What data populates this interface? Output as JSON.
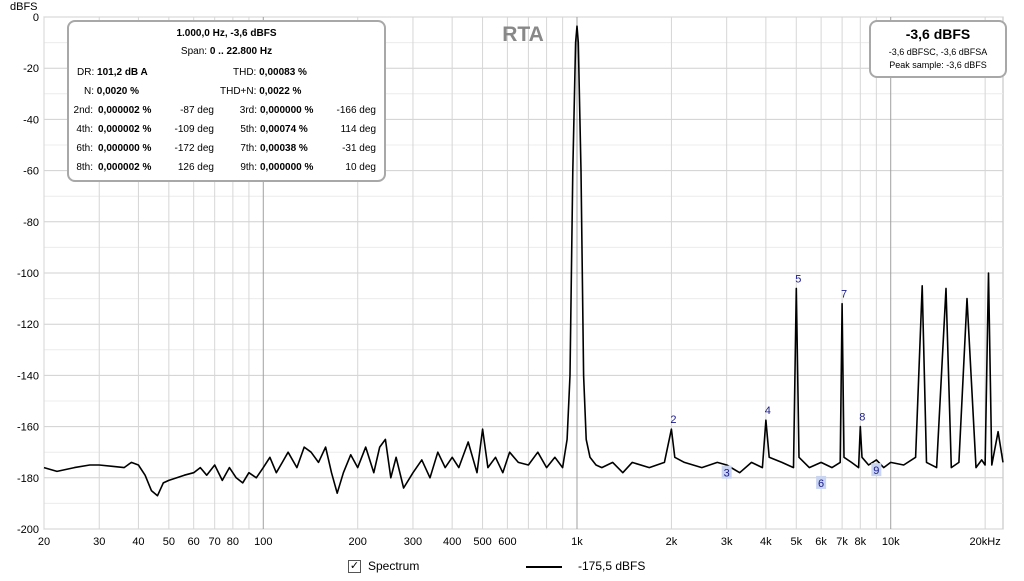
{
  "chart_data": {
    "type": "line",
    "title": "RTA",
    "ylabel": "dBFS",
    "xlabel": "",
    "xscale": "log",
    "xlim": [
      20,
      22800
    ],
    "ylim": [
      -200,
      0
    ],
    "yticks": [
      0,
      -20,
      -40,
      -60,
      -80,
      -100,
      -120,
      -140,
      -160,
      -180,
      -200
    ],
    "xticks": [
      {
        "v": 20,
        "l": "20"
      },
      {
        "v": 30,
        "l": "30"
      },
      {
        "v": 40,
        "l": "40"
      },
      {
        "v": 50,
        "l": "50"
      },
      {
        "v": 60,
        "l": "60"
      },
      {
        "v": 70,
        "l": "70"
      },
      {
        "v": 80,
        "l": "80"
      },
      {
        "v": 100,
        "l": "100"
      },
      {
        "v": 200,
        "l": "200"
      },
      {
        "v": 300,
        "l": "300"
      },
      {
        "v": 400,
        "l": "400"
      },
      {
        "v": 500,
        "l": "500"
      },
      {
        "v": 600,
        "l": "600"
      },
      {
        "v": 1000,
        "l": "1k"
      },
      {
        "v": 2000,
        "l": "2k"
      },
      {
        "v": 3000,
        "l": "3k"
      },
      {
        "v": 4000,
        "l": "4k"
      },
      {
        "v": 5000,
        "l": "5k"
      },
      {
        "v": 6000,
        "l": "6k"
      },
      {
        "v": 7000,
        "l": "7k"
      },
      {
        "v": 8000,
        "l": "8k"
      },
      {
        "v": 10000,
        "l": "10k"
      },
      {
        "v": 20000,
        "l": "20kHz"
      }
    ],
    "grid": true,
    "series": [
      {
        "name": "Spectrum",
        "x": [
          20,
          22,
          25,
          28,
          30,
          33,
          36,
          38,
          40,
          42,
          44,
          46,
          48,
          50,
          53,
          56,
          60,
          63,
          66,
          70,
          74,
          78,
          82,
          86,
          90,
          95,
          100,
          105,
          110,
          115,
          120,
          128,
          135,
          142,
          150,
          158,
          165,
          172,
          180,
          190,
          200,
          212,
          225,
          235,
          245,
          255,
          265,
          280,
          300,
          320,
          340,
          360,
          380,
          400,
          420,
          450,
          480,
          500,
          520,
          550,
          580,
          610,
          650,
          700,
          750,
          800,
          850,
          900,
          930,
          950,
          970,
          990,
          1000,
          1010,
          1030,
          1050,
          1070,
          1100,
          1150,
          1200,
          1300,
          1400,
          1500,
          1700,
          1900,
          2000,
          2050,
          2200,
          2500,
          2800,
          3000,
          3300,
          3600,
          3900,
          4000,
          4100,
          4500,
          4900,
          5000,
          5100,
          5500,
          6000,
          6500,
          6900,
          7000,
          7100,
          7500,
          7900,
          8000,
          8100,
          8500,
          9000,
          9500,
          10000,
          11000,
          12000,
          12600,
          13000,
          14000,
          15000,
          15600,
          16500,
          17500,
          18700,
          19500,
          20000,
          20500,
          21000,
          22000,
          22800
        ],
        "values": [
          -176,
          -177.5,
          -176,
          -175,
          -175,
          -175.5,
          -176,
          -174,
          -175,
          -179,
          -185,
          -187,
          -182,
          -181,
          -180,
          -179,
          -178,
          -176,
          -179,
          -175,
          -181,
          -176,
          -180,
          -182,
          -178,
          -180,
          -176,
          -172,
          -178,
          -174,
          -170,
          -176,
          -168,
          -170,
          -174,
          -168,
          -178,
          -186,
          -178,
          -171,
          -176,
          -168,
          -178,
          -168,
          -165,
          -180,
          -172,
          -184,
          -178,
          -173,
          -180,
          -170,
          -176,
          -172,
          -176,
          -166,
          -178,
          -161,
          -176,
          -172,
          -178,
          -170,
          -174,
          -175,
          -170,
          -176,
          -172,
          -176,
          -165,
          -140,
          -60,
          -10,
          -3.6,
          -10,
          -60,
          -140,
          -165,
          -172,
          -175,
          -176,
          -174,
          -178,
          -174,
          -176,
          -174,
          -161,
          -172,
          -174,
          -176,
          -174,
          -175,
          -178,
          -174,
          -176,
          -157.5,
          -172,
          -174,
          -176,
          -106,
          -172,
          -176,
          -174,
          -176,
          -174,
          -112,
          -172,
          -174,
          -176,
          -160,
          -172,
          -175,
          -173,
          -176,
          -174,
          -175,
          -172,
          -105,
          -174,
          -176,
          -106,
          -176,
          -174,
          -110,
          -176,
          -173,
          -175,
          -100,
          -175,
          -162,
          -174
        ]
      }
    ],
    "annotations": [
      {
        "label": "2",
        "x": 2000,
        "y": -161,
        "boxed": false
      },
      {
        "label": "3",
        "x": 3000,
        "y": -178,
        "boxed": true
      },
      {
        "label": "4",
        "x": 4000,
        "y": -157.5,
        "boxed": false
      },
      {
        "label": "5",
        "x": 5000,
        "y": -106,
        "boxed": false
      },
      {
        "label": "6",
        "x": 6000,
        "y": -182,
        "boxed": true
      },
      {
        "label": "7",
        "x": 7000,
        "y": -112,
        "boxed": false
      },
      {
        "label": "8",
        "x": 8000,
        "y": -160,
        "boxed": false
      },
      {
        "label": "9",
        "x": 9000,
        "y": -177,
        "boxed": true
      }
    ]
  },
  "stats": {
    "freq_level": "1.000,0 Hz, -3,6 dBFS",
    "span_label": "Span:",
    "span_value": "0 .. 22.800 Hz",
    "dr_label": "DR:",
    "dr_value": "101,2 dB A",
    "thd_label": "THD:",
    "thd_value": "0,00083 %",
    "n_label": "N:",
    "n_value": "0,0020 %",
    "thdn_label": "THD+N:",
    "thdn_value": "0,0022 %",
    "harmonics": [
      {
        "l1": "2nd:",
        "v1": "0,000002 %",
        "p1": "-87 deg",
        "l2": "3rd:",
        "v2": "0,000000 %",
        "p2": "-166 deg"
      },
      {
        "l1": "4th:",
        "v1": "0,000002 %",
        "p1": "-109 deg",
        "l2": "5th:",
        "v2": "0,00074 %",
        "p2": "114 deg"
      },
      {
        "l1": "6th:",
        "v1": "0,000000 %",
        "p1": "-172 deg",
        "l2": "7th:",
        "v2": "0,00038 %",
        "p2": "-31 deg"
      },
      {
        "l1": "8th:",
        "v1": "0,000002 %",
        "p1": "126 deg",
        "l2": "9th:",
        "v2": "0,000000 %",
        "p2": "10 deg"
      }
    ]
  },
  "peak": {
    "title": "-3,6 dBFS",
    "line1": "-3,6 dBFSC, -3,6 dBFSA",
    "line2": "Peak sample: -3,6 dBFS"
  },
  "legend": {
    "checkbox_label": "Spectrum",
    "checkbox_mark": "✓",
    "line_value": "-175,5 dBFS"
  }
}
